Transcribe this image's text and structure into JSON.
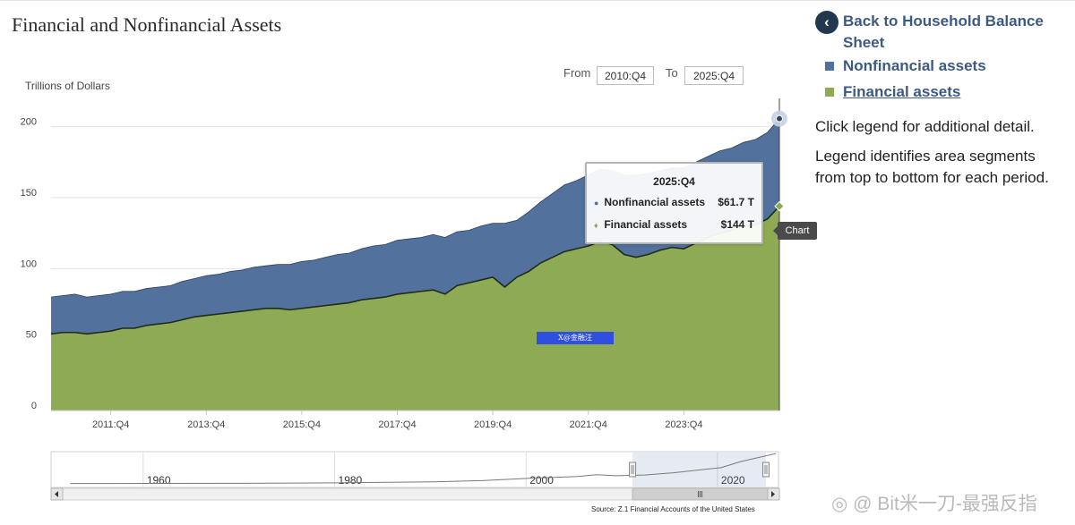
{
  "page": {
    "title": "Financial and Nonfinancial Assets",
    "source_note": "Source: Z.1 Financial Accounts of the United States",
    "watermark_badge": "X@金融汪",
    "signature": "◎ @ Bit米一刀-最强反指"
  },
  "range": {
    "from_label": "From",
    "from_value": "2010:Q4",
    "to_label": "To",
    "to_value": "2025:Q4"
  },
  "tooltip": {
    "title": "2025:Q4",
    "rows": [
      {
        "label": "Nonfinancial assets",
        "value": "$61.7 T",
        "marker": "●"
      },
      {
        "label": "Financial assets",
        "value": "$144 T",
        "marker": "♦"
      }
    ],
    "tag": "Chart"
  },
  "sidebar": {
    "back_label": "Back to Household Balance Sheet",
    "back_icon": "‹",
    "legend": [
      {
        "label": "Nonfinancial assets",
        "color": "#52719c"
      },
      {
        "label": "Financial assets",
        "color": "#8faa55"
      }
    ],
    "note1": "Click legend for additional detail.",
    "note2": "Legend identifies area segments from top to bottom for each period."
  },
  "chart_data": {
    "type": "area",
    "stacked": true,
    "ylabel": "Trillions of Dollars",
    "ylim": [
      0,
      220
    ],
    "yticks": [
      0,
      50,
      100,
      150,
      200
    ],
    "xlim": [
      2010.5,
      2025.75
    ],
    "xticks": [
      2011.75,
      2013.75,
      2015.75,
      2017.75,
      2019.75,
      2021.75,
      2023.75
    ],
    "xtick_labels": [
      "2011:Q4",
      "2013:Q4",
      "2015:Q4",
      "2017:Q4",
      "2019:Q4",
      "2021:Q4",
      "2023:Q4"
    ],
    "grid": true,
    "x": [
      2010.5,
      2010.75,
      2011.0,
      2011.25,
      2011.5,
      2011.75,
      2012.0,
      2012.25,
      2012.5,
      2012.75,
      2013.0,
      2013.25,
      2013.5,
      2013.75,
      2014.0,
      2014.25,
      2014.5,
      2014.75,
      2015.0,
      2015.25,
      2015.5,
      2015.75,
      2016.0,
      2016.25,
      2016.5,
      2016.75,
      2017.0,
      2017.25,
      2017.5,
      2017.75,
      2018.0,
      2018.25,
      2018.5,
      2018.75,
      2019.0,
      2019.25,
      2019.5,
      2019.75,
      2020.0,
      2020.25,
      2020.5,
      2020.75,
      2021.0,
      2021.25,
      2021.5,
      2021.75,
      2022.0,
      2022.25,
      2022.5,
      2022.75,
      2023.0,
      2023.25,
      2023.5,
      2023.75,
      2024.0,
      2024.25,
      2024.5,
      2024.75,
      2025.0,
      2025.25,
      2025.5,
      2025.75
    ],
    "series": [
      {
        "name": "Financial assets",
        "color": "#8faa55",
        "values": [
          54,
          55,
          55,
          54,
          55,
          56,
          58,
          58,
          60,
          61,
          62,
          64,
          66,
          67,
          68,
          69,
          70,
          71,
          72,
          72,
          71,
          72,
          73,
          74,
          75,
          76,
          78,
          79,
          80,
          82,
          83,
          84,
          85,
          82,
          88,
          90,
          92,
          94,
          87,
          94,
          98,
          104,
          108,
          112,
          114,
          116,
          119,
          117,
          110,
          108,
          110,
          113,
          115,
          114,
          118,
          122,
          125,
          127,
          130,
          131,
          135,
          144
        ]
      },
      {
        "name": "Nonfinancial assets",
        "color": "#52719c",
        "values": [
          26,
          26,
          27,
          26,
          26,
          26,
          26,
          26,
          26,
          26,
          26,
          27,
          27,
          28,
          28,
          29,
          29,
          30,
          30,
          31,
          32,
          33,
          33,
          34,
          35,
          35,
          36,
          37,
          37,
          38,
          38,
          38,
          39,
          40,
          38,
          37,
          38,
          38,
          45,
          40,
          42,
          43,
          45,
          47,
          48,
          50,
          51,
          52,
          56,
          58,
          57,
          56,
          56,
          57,
          57,
          57,
          58,
          58,
          59,
          60,
          61,
          61.7
        ]
      }
    ]
  },
  "navigator": {
    "labels": [
      "1960",
      "1980",
      "2000",
      "2020"
    ],
    "xlim": [
      1950,
      2026
    ],
    "label_years": [
      1960,
      1980,
      2000,
      2020
    ],
    "window": [
      2010.75,
      2025.75
    ],
    "x": [
      1952,
      1960,
      1970,
      1980,
      1990,
      1995,
      2000,
      2005,
      2007,
      2009,
      2012,
      2015,
      2018,
      2020,
      2022,
      2025.75
    ],
    "values": [
      2,
      3,
      4,
      7,
      14,
      22,
      38,
      50,
      62,
      55,
      60,
      75,
      96,
      110,
      150,
      206
    ],
    "max": 206
  }
}
